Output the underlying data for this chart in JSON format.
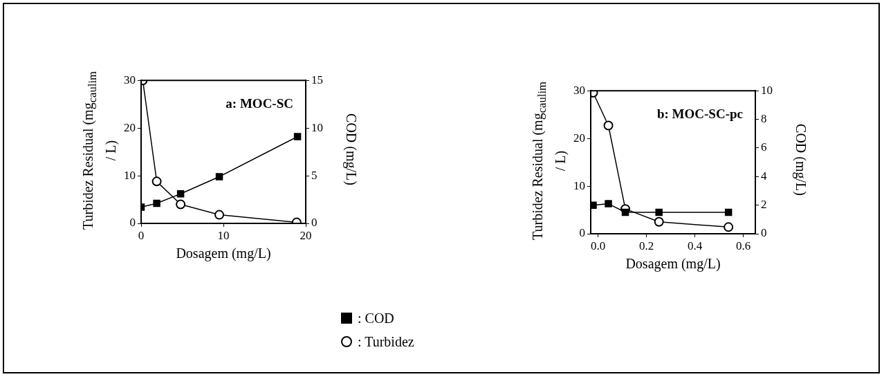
{
  "chart_data": [
    {
      "type": "line",
      "title": "a: MOC-SC",
      "xlabel": "Dosagem (mg/L)",
      "ylabel": "Turbidez  Residual (mg$_{caulim}$ / L)",
      "y2label": "COD (mg/L)",
      "xlim": [
        0,
        20
      ],
      "xticks": [
        0,
        10,
        20
      ],
      "ylim": [
        0,
        30
      ],
      "yticks": [
        0,
        10,
        20,
        30
      ],
      "y2lim": [
        0,
        15
      ],
      "y2ticks": [
        0,
        5,
        10,
        15
      ],
      "grid": false,
      "legend": "bottom",
      "series": [
        {
          "name": ": COD",
          "color": "#000000",
          "marker": "square",
          "axis": "y2",
          "x": [
            0,
            1.9,
            4.8,
            9.5,
            19
          ],
          "values": [
            1.7,
            2.1,
            3.1,
            4.9,
            9.1
          ]
        },
        {
          "name": ": Turbidez",
          "color": "#000000",
          "marker": "circle",
          "x": [
            0.2,
            1.9,
            4.8,
            9.5,
            18.9
          ],
          "values": [
            30,
            8.8,
            4,
            1.8,
            0.2
          ]
        }
      ]
    },
    {
      "type": "line",
      "title": "b: MOC-SC-pc",
      "xlabel": "Dosagem (mg/L)",
      "ylabel": "Turbidez  Residual (mg$_{caulim}$ / L)",
      "y2label": "COD (mg/L)",
      "xlim": [
        -0.03,
        0.65
      ],
      "xticks": [
        {
          "value": 0,
          "label": "0.0"
        },
        0.2,
        0.4,
        0.6
      ],
      "ylim": [
        0,
        30
      ],
      "yticks": [
        0,
        10,
        20,
        30
      ],
      "y2lim": [
        0,
        10
      ],
      "y2ticks": [
        0,
        2,
        4,
        6,
        8,
        10
      ],
      "grid": false,
      "series": [
        {
          "color": "#000000",
          "marker": "square",
          "axis": "y2",
          "x": [
            -0.02,
            0.043,
            0.113,
            0.252,
            0.539
          ],
          "values": [
            2,
            2.1,
            1.5,
            1.5,
            1.5
          ]
        },
        {
          "color": "#000000",
          "marker": "circle",
          "x": [
            -0.02,
            0.043,
            0.113,
            0.252,
            0.539
          ],
          "values": [
            29.6,
            22.7,
            5.2,
            2.5,
            1.4
          ]
        }
      ]
    }
  ]
}
